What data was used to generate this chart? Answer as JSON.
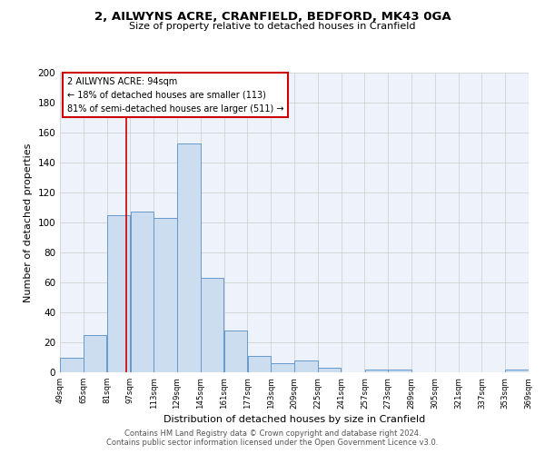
{
  "title": "2, AILWYNS ACRE, CRANFIELD, BEDFORD, MK43 0GA",
  "subtitle": "Size of property relative to detached houses in Cranfield",
  "xlabel": "Distribution of detached houses by size in Cranfield",
  "ylabel": "Number of detached properties",
  "bar_left_edges": [
    49,
    65,
    81,
    97,
    113,
    129,
    145,
    161,
    177,
    193,
    209,
    225,
    241,
    257,
    273,
    289,
    305,
    321,
    337,
    353
  ],
  "bar_heights": [
    10,
    25,
    105,
    107,
    103,
    153,
    63,
    28,
    11,
    6,
    8,
    3,
    0,
    2,
    2,
    0,
    0,
    0,
    0,
    2
  ],
  "bin_width": 16,
  "bar_facecolor": "#ccddf0",
  "bar_edgecolor": "#6699cc",
  "vline_x": 94,
  "vline_color": "#cc0000",
  "annotation_text": "2 AILWYNS ACRE: 94sqm\n← 18% of detached houses are smaller (113)\n81% of semi-detached houses are larger (511) →",
  "annotation_box_color": "#ffffff",
  "annotation_box_edgecolor": "#cc0000",
  "ylim": [
    0,
    200
  ],
  "yticks": [
    0,
    20,
    40,
    60,
    80,
    100,
    120,
    140,
    160,
    180,
    200
  ],
  "xtick_labels": [
    "49sqm",
    "65sqm",
    "81sqm",
    "97sqm",
    "113sqm",
    "129sqm",
    "145sqm",
    "161sqm",
    "177sqm",
    "193sqm",
    "209sqm",
    "225sqm",
    "241sqm",
    "257sqm",
    "273sqm",
    "289sqm",
    "305sqm",
    "321sqm",
    "337sqm",
    "353sqm",
    "369sqm"
  ],
  "background_color": "#eef2fa",
  "grid_color": "#cccccc",
  "footer_line1": "Contains HM Land Registry data © Crown copyright and database right 2024.",
  "footer_line2": "Contains public sector information licensed under the Open Government Licence v3.0."
}
